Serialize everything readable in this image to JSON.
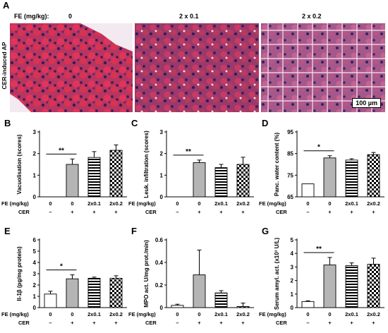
{
  "panel_A": {
    "label": "A",
    "dose_header": "FE (mg/kg):",
    "doses": [
      "0",
      "2 x 0.1",
      "2 x 0.2"
    ],
    "row_label": "CER-induced AP",
    "scale_bar": "100 µm"
  },
  "x_axis": {
    "row1_label": "FE (mg/kg)",
    "row2_label": "CER",
    "fe": [
      "0",
      "0",
      "2x0.1",
      "2x0.2"
    ],
    "cer": [
      "–",
      "+",
      "+",
      "+"
    ]
  },
  "colors": {
    "bar_white": "#ffffff",
    "bar_gray": "#b5b5b5",
    "stroke": "#000000"
  },
  "chart_data": [
    {
      "id": "B",
      "label": "B",
      "type": "bar",
      "ylabel": "Vacuolisation (scores)",
      "ylim": [
        0,
        3
      ],
      "yticks": [
        0,
        1,
        2,
        3
      ],
      "values": [
        0,
        1.5,
        1.82,
        2.15
      ],
      "errors": [
        0,
        0.25,
        0.27,
        0.25
      ],
      "sig": {
        "from": 0,
        "to": 1,
        "text": "**"
      }
    },
    {
      "id": "C",
      "label": "C",
      "type": "bar",
      "ylabel": "Leuk. infiltration (scores)",
      "ylim": [
        0,
        3
      ],
      "yticks": [
        0,
        1,
        2,
        3
      ],
      "values": [
        0,
        1.58,
        1.35,
        1.5
      ],
      "errors": [
        0,
        0.12,
        0.15,
        0.33
      ],
      "sig": {
        "from": 0,
        "to": 1,
        "text": "**"
      }
    },
    {
      "id": "D",
      "label": "D",
      "type": "bar",
      "ylabel": "Panc. water content (%)",
      "ylim": [
        65,
        95
      ],
      "yticks": [
        65,
        75,
        85,
        95
      ],
      "values": [
        71,
        83,
        82,
        84.5
      ],
      "errors": [
        0,
        1,
        0.6,
        1
      ],
      "sig": {
        "from": 0,
        "to": 1,
        "text": "*"
      }
    },
    {
      "id": "E",
      "label": "E",
      "type": "bar",
      "ylabel": "Il-1β (pg/mg protein)",
      "ylim": [
        0,
        6
      ],
      "yticks": [
        0,
        1,
        2,
        3,
        4,
        5,
        6
      ],
      "values": [
        1.2,
        2.55,
        2.6,
        2.6
      ],
      "errors": [
        0.25,
        0.35,
        0.1,
        0.22
      ],
      "sig": {
        "from": 0,
        "to": 1,
        "text": "*"
      }
    },
    {
      "id": "F",
      "label": "F",
      "type": "bar",
      "ylabel": "MPO act. U/mg prot./min)",
      "ylim": [
        0,
        0.6
      ],
      "yticks": [
        0,
        0.2,
        0.4,
        0.6
      ],
      "values": [
        0.02,
        0.29,
        0.13,
        0.01
      ],
      "errors": [
        0.01,
        0.22,
        0.02,
        0.03
      ],
      "sig": null
    },
    {
      "id": "G",
      "label": "G",
      "type": "bar",
      "ylabel": "Serum amyl. act. (x10³ U/L)",
      "ylim": [
        0,
        5
      ],
      "yticks": [
        0,
        1,
        2,
        3,
        4,
        5
      ],
      "values": [
        0.45,
        3.15,
        3.1,
        3.2
      ],
      "errors": [
        0.05,
        0.55,
        0.2,
        0.45
      ],
      "sig": {
        "from": 0,
        "to": 1,
        "text": "**"
      }
    }
  ]
}
